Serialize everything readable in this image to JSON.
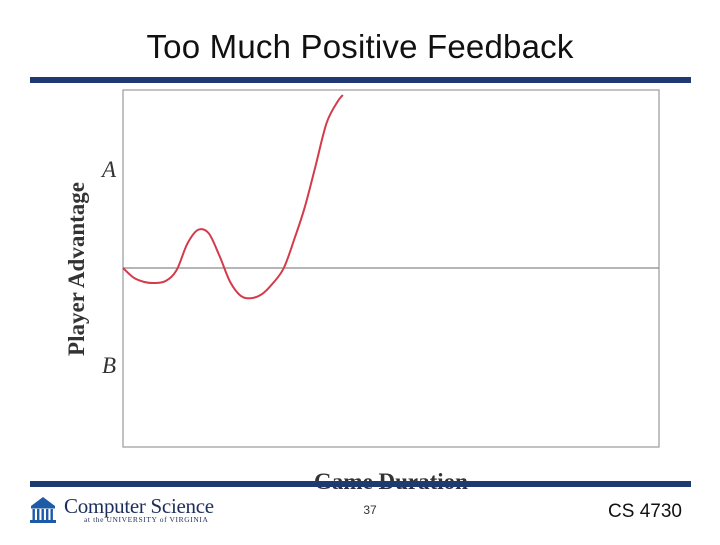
{
  "slide": {
    "title": "Too Much Positive Feedback",
    "page_number": "37",
    "course": "CS 4730"
  },
  "footer": {
    "logo_main": "Computer Science",
    "logo_sub": "at the UNIVERSITY of VIRGINIA"
  },
  "colors": {
    "rule": "#1f3a73",
    "curve": "#d23b4a",
    "axis_line": "#8a8a8a",
    "frame": "#9a9a9a"
  },
  "chart_data": {
    "type": "line",
    "title": "",
    "xlabel": "Game Duration",
    "ylabel": "Player Advantage",
    "y_tick_labels": [
      "A",
      "B"
    ],
    "xlim": [
      0,
      1
    ],
    "ylim": [
      -1,
      1
    ],
    "grid": false,
    "legend": "none",
    "reference_line": {
      "y": 0
    },
    "series": [
      {
        "x": [
          0.0,
          0.02,
          0.04,
          0.06,
          0.08,
          0.1,
          0.12,
          0.14,
          0.16,
          0.18,
          0.2,
          0.22,
          0.24,
          0.26,
          0.28,
          0.3,
          0.32,
          0.34,
          0.36,
          0.38,
          0.4,
          0.41
        ],
        "y": [
          0.0,
          -0.09,
          -0.13,
          -0.14,
          -0.12,
          -0.02,
          0.14,
          0.22,
          0.2,
          0.07,
          -0.13,
          -0.26,
          -0.28,
          -0.24,
          -0.14,
          0.0,
          0.17,
          0.36,
          0.6,
          0.84,
          0.96,
          1.0
        ]
      }
    ]
  }
}
